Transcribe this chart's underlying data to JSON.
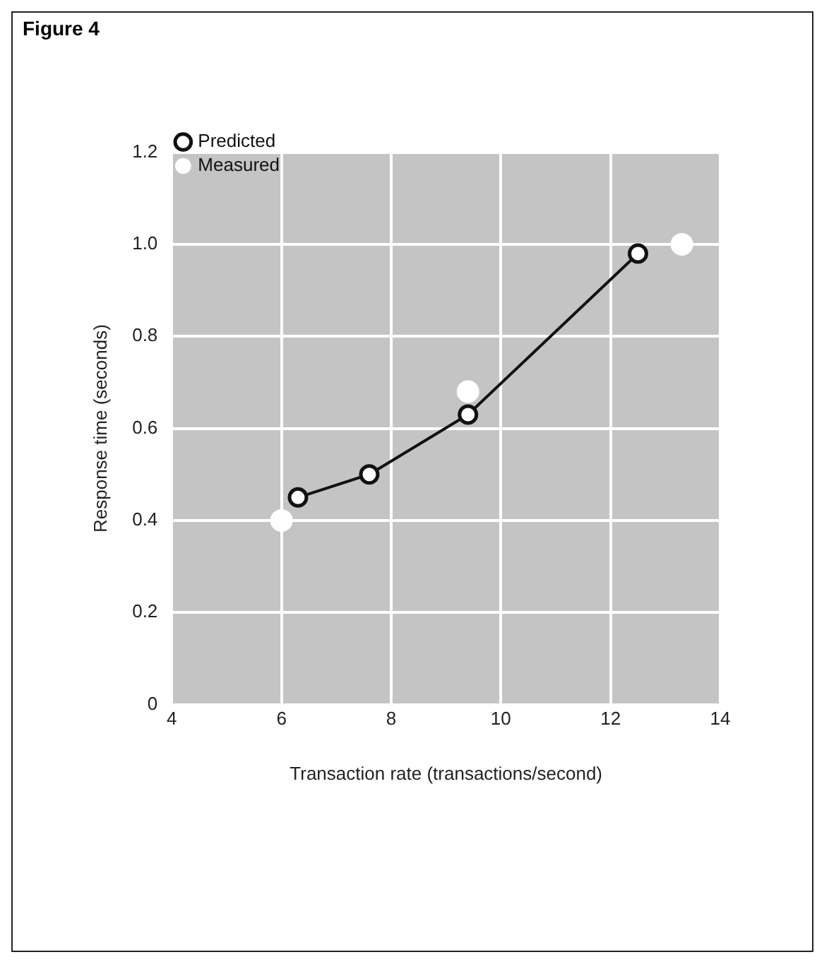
{
  "chart_data": {
    "type": "line",
    "title": "Figure 4",
    "xlabel": "Transaction rate (transactions/second)",
    "ylabel": "Response time (seconds)",
    "xlim": [
      4,
      14
    ],
    "xticks": [
      4,
      6,
      8,
      10,
      12,
      14
    ],
    "ylim": [
      0,
      1.2
    ],
    "yticks": [
      0,
      0.2,
      0.4,
      0.6,
      0.8,
      {
        "value": 1,
        "label": "1.0"
      },
      1.2
    ],
    "grid": true,
    "legend": "top left",
    "series": [
      {
        "name": "Predicted",
        "type": "line",
        "marker": "circle",
        "color": "#111111",
        "x": [
          6.3,
          7.6,
          9.4,
          12.5
        ],
        "values": [
          0.45,
          0.5,
          0.63,
          0.98
        ]
      },
      {
        "name": "Measured",
        "type": "scatter",
        "marker": "circle",
        "color": "#ffffff",
        "x": [
          6.0,
          9.4,
          13.3
        ],
        "values": [
          0.4,
          0.68,
          1.0
        ]
      }
    ]
  }
}
